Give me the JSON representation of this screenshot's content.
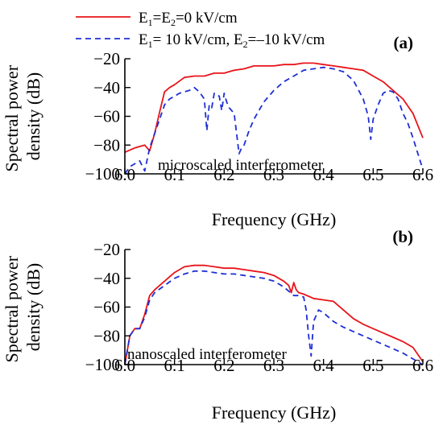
{
  "legend": {
    "placement": "top",
    "entries": [
      {
        "series_index": 0,
        "prefix": "E",
        "s1": "1",
        "mid": "=E",
        "s2": "2",
        "suffix": "=0 kV/cm"
      },
      {
        "series_index": 1,
        "prefix": "E",
        "s1": "1",
        "mid": "= 10 kV/cm, E",
        "s2": "2",
        "suffix": "=–10 kV/cm"
      }
    ]
  },
  "chart_data": [
    {
      "type": "line",
      "panel_label": "(a)",
      "annotation": "microscaled interferometer",
      "xlabel": "Frequency (GHz)",
      "ylabel": [
        "Spectral power",
        "density (dB)"
      ],
      "xlim": [
        6.0,
        6.6
      ],
      "ylim": [
        -100,
        -20
      ],
      "xticks": [
        6.0,
        6.1,
        6.2,
        6.3,
        6.4,
        6.5,
        6.6
      ],
      "yticks": [
        -100,
        -80,
        -60,
        -40,
        -20
      ],
      "xtick_labels": [
        "6.0",
        "6.1",
        "6.2",
        "6.3",
        "6.4",
        "6.5",
        "6.6"
      ],
      "ytick_labels": [
        "−100",
        "−80",
        "−60",
        "−40",
        "−20"
      ],
      "grid": false,
      "series": [
        {
          "color": "#e8141a",
          "dash": "solid",
          "x": [
            6.0,
            6.02,
            6.04,
            6.05,
            6.06,
            6.07,
            6.08,
            6.09,
            6.1,
            6.12,
            6.14,
            6.16,
            6.18,
            6.2,
            6.22,
            6.24,
            6.26,
            6.28,
            6.3,
            6.32,
            6.34,
            6.36,
            6.38,
            6.4,
            6.42,
            6.44,
            6.46,
            6.48,
            6.5,
            6.52,
            6.54,
            6.56,
            6.58,
            6.6
          ],
          "y": [
            -85,
            -82,
            -80,
            -84,
            -72,
            -57,
            -43,
            -40,
            -38,
            -33,
            -32,
            -32,
            -30,
            -30,
            -28,
            -27,
            -25,
            -25,
            -25,
            -24,
            -24,
            -23,
            -23,
            -24,
            -25,
            -26,
            -27,
            -28,
            -32,
            -36,
            -42,
            -48,
            -58,
            -75
          ]
        },
        {
          "color": "#1f2fd6",
          "dash": "7,5",
          "x": [
            6.0,
            6.01,
            6.02,
            6.03,
            6.04,
            6.05,
            6.06,
            6.07,
            6.08,
            6.09,
            6.1,
            6.11,
            6.12,
            6.13,
            6.14,
            6.15,
            6.16,
            6.165,
            6.17,
            6.175,
            6.18,
            6.19,
            6.195,
            6.2,
            6.205,
            6.21,
            6.22,
            6.23,
            6.235,
            6.24,
            6.25,
            6.26,
            6.27,
            6.28,
            6.3,
            6.32,
            6.34,
            6.36,
            6.38,
            6.4,
            6.42,
            6.44,
            6.46,
            6.48,
            6.49,
            6.495,
            6.5,
            6.51,
            6.52,
            6.53,
            6.54,
            6.55,
            6.56,
            6.57,
            6.58,
            6.6
          ],
          "y": [
            -100,
            -95,
            -93,
            -91,
            -98,
            -82,
            -72,
            -62,
            -52,
            -48,
            -46,
            -44,
            -43,
            -42,
            -40,
            -43,
            -48,
            -70,
            -52,
            -54,
            -44,
            -46,
            -56,
            -44,
            -50,
            -54,
            -58,
            -86,
            -82,
            -80,
            -70,
            -62,
            -56,
            -50,
            -42,
            -36,
            -32,
            -28,
            -27,
            -26,
            -27,
            -29,
            -35,
            -48,
            -60,
            -76,
            -62,
            -52,
            -44,
            -42,
            -43,
            -48,
            -58,
            -65,
            -75,
            -97
          ]
        }
      ]
    },
    {
      "type": "line",
      "panel_label": "(b)",
      "annotation": "nanoscaled interferometer",
      "xlabel": "Frequency (GHz)",
      "ylabel": [
        "Spectral power",
        "density (dB)"
      ],
      "xlim": [
        6.0,
        6.6
      ],
      "ylim": [
        -100,
        -20
      ],
      "xticks": [
        6.0,
        6.1,
        6.2,
        6.3,
        6.4,
        6.5,
        6.6
      ],
      "yticks": [
        -100,
        -80,
        -60,
        -40,
        -20
      ],
      "xtick_labels": [
        "6.0",
        "6.1",
        "6.2",
        "6.3",
        "6.4",
        "6.5",
        "6.6"
      ],
      "ytick_labels": [
        "−100",
        "−80",
        "−60",
        "−40",
        "−20"
      ],
      "grid": false,
      "series": [
        {
          "color": "#e8141a",
          "dash": "solid",
          "x": [
            6.0,
            6.005,
            6.01,
            6.02,
            6.03,
            6.04,
            6.05,
            6.06,
            6.08,
            6.1,
            6.12,
            6.14,
            6.16,
            6.18,
            6.2,
            6.22,
            6.24,
            6.26,
            6.28,
            6.3,
            6.31,
            6.32,
            6.33,
            6.335,
            6.34,
            6.345,
            6.35,
            6.36,
            6.38,
            6.4,
            6.42,
            6.44,
            6.46,
            6.48,
            6.5,
            6.52,
            6.54,
            6.56,
            6.58,
            6.6
          ],
          "y": [
            -100,
            -90,
            -80,
            -75,
            -75,
            -65,
            -52,
            -48,
            -42,
            -36,
            -32,
            -31,
            -31,
            -32,
            -33,
            -33,
            -34,
            -35,
            -36,
            -38,
            -40,
            -42,
            -45,
            -50,
            -43,
            -48,
            -50,
            -51,
            -54,
            -55,
            -56,
            -62,
            -68,
            -72,
            -75,
            -78,
            -81,
            -84,
            -88,
            -98
          ]
        },
        {
          "color": "#1f2fd6",
          "dash": "7,5",
          "x": [
            6.0,
            6.005,
            6.01,
            6.02,
            6.03,
            6.04,
            6.05,
            6.06,
            6.08,
            6.1,
            6.12,
            6.14,
            6.16,
            6.18,
            6.2,
            6.22,
            6.24,
            6.26,
            6.28,
            6.3,
            6.31,
            6.32,
            6.33,
            6.34,
            6.35,
            6.36,
            6.365,
            6.37,
            6.375,
            6.38,
            6.39,
            6.4,
            6.42,
            6.44,
            6.46,
            6.48,
            6.5,
            6.52,
            6.54,
            6.56,
            6.58,
            6.6
          ],
          "y": [
            -100,
            -90,
            -80,
            -75,
            -75,
            -67,
            -55,
            -50,
            -45,
            -40,
            -37,
            -35,
            -35,
            -36,
            -37,
            -37,
            -38,
            -39,
            -40,
            -42,
            -44,
            -46,
            -49,
            -52,
            -52,
            -53,
            -62,
            -80,
            -94,
            -70,
            -62,
            -64,
            -70,
            -74,
            -77,
            -80,
            -83,
            -86,
            -89,
            -92,
            -96,
            -100
          ]
        }
      ]
    }
  ]
}
